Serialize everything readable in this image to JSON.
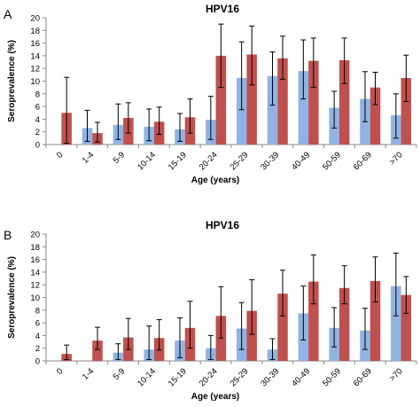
{
  "chart_data": [
    {
      "type": "bar",
      "panel": "A",
      "title": "HPV16",
      "xlabel": "Age (years)",
      "ylabel": "Seroprevalence (%)",
      "ylim": [
        0,
        20
      ],
      "yticks": [
        "0",
        "2",
        "4",
        "6",
        "8",
        "10",
        "12",
        "14",
        "16",
        "18",
        "20"
      ],
      "categories": [
        "0",
        "1-4",
        "5-9",
        "10-14",
        "15-19",
        "20-24",
        "25-29",
        "30-39",
        "40-49",
        "50-59",
        "60-69",
        ">70"
      ],
      "grid": false,
      "error_bars": true,
      "series": [
        {
          "color": "#8fb4e3",
          "values": [
            null,
            2.6,
            3.1,
            2.8,
            2.4,
            3.9,
            10.5,
            10.8,
            11.6,
            5.8,
            7.2,
            4.6
          ],
          "error_low": [
            null,
            0.5,
            0.8,
            0.6,
            0.5,
            0.8,
            5.5,
            6.2,
            7.2,
            2.6,
            3.6,
            1.0
          ],
          "error_high": [
            null,
            5.4,
            6.4,
            5.6,
            4.9,
            7.6,
            16.2,
            14.6,
            16.5,
            8.4,
            11.5,
            8.0
          ]
        },
        {
          "color": "#c0504d",
          "values": [
            5.0,
            1.8,
            4.2,
            3.6,
            4.3,
            14.0,
            14.2,
            13.6,
            13.2,
            13.3,
            9.0,
            10.5
          ],
          "error_low": [
            0.2,
            0.4,
            1.8,
            1.6,
            1.8,
            9.0,
            9.4,
            10.3,
            9.0,
            9.6,
            6.3,
            6.8
          ],
          "error_high": [
            10.6,
            3.5,
            6.6,
            5.9,
            7.2,
            19.0,
            18.7,
            17.1,
            16.8,
            16.8,
            11.4,
            14.1
          ]
        }
      ]
    },
    {
      "type": "bar",
      "panel": "B",
      "title": "HPV16",
      "xlabel": "Age (years)",
      "ylabel": "Seroprevalence (%)",
      "ylim": [
        0,
        20
      ],
      "yticks": [
        "0",
        "2",
        "4",
        "6",
        "8",
        "10",
        "12",
        "14",
        "16",
        "18",
        "20"
      ],
      "categories": [
        "0",
        "1-4",
        "5-9",
        "10-14",
        "15-19",
        "20-24",
        "25-29",
        "30-39",
        "40-49",
        "50-59",
        "60-69",
        ">70"
      ],
      "grid": false,
      "error_bars": true,
      "series": [
        {
          "color": "#8fb4e3",
          "values": [
            null,
            null,
            1.3,
            1.8,
            3.2,
            2.0,
            5.1,
            1.8,
            7.5,
            5.2,
            4.8,
            11.8
          ],
          "error_low": [
            null,
            null,
            0.2,
            0.2,
            0.5,
            0.2,
            1.8,
            0.2,
            3.3,
            2.2,
            1.8,
            7.1
          ],
          "error_high": [
            null,
            null,
            2.7,
            5.5,
            6.8,
            4.0,
            9.2,
            3.5,
            11.8,
            8.4,
            8.3,
            17.0
          ]
        },
        {
          "color": "#c0504d",
          "values": [
            1.1,
            3.2,
            3.7,
            3.6,
            5.2,
            7.1,
            7.9,
            10.6,
            12.5,
            11.5,
            12.6,
            10.4
          ],
          "error_low": [
            0.2,
            1.8,
            1.8,
            1.7,
            2.0,
            3.6,
            4.2,
            7.1,
            9.0,
            9.0,
            9.3,
            7.5
          ],
          "error_high": [
            2.5,
            5.3,
            6.7,
            6.5,
            9.4,
            11.7,
            12.8,
            14.3,
            16.7,
            15.0,
            16.4,
            13.3
          ]
        }
      ]
    }
  ]
}
